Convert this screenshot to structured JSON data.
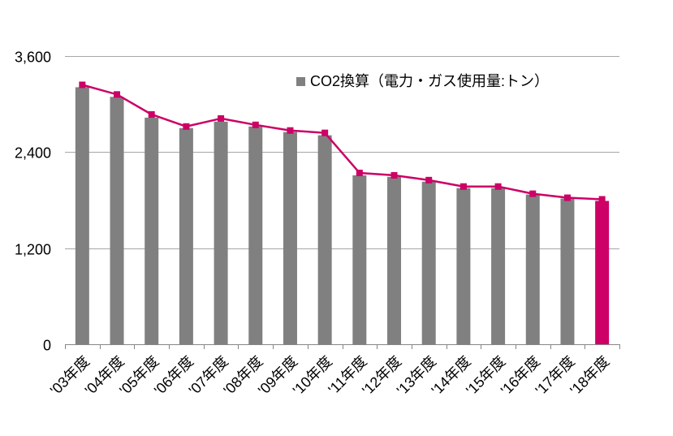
{
  "chart_data": {
    "type": "bar",
    "categories": [
      "'03年度",
      "'04年度",
      "'05年度",
      "'06年度",
      "'07年度",
      "'08年度",
      "'09年度",
      "'10年度",
      "'11年度",
      "'12年度",
      "'13年度",
      "'14年度",
      "'15年度",
      "'16年度",
      "'17年度",
      "'18年度"
    ],
    "series": [
      {
        "name": "CO2換算（電力・ガス使用量:トン）",
        "type": "bar",
        "values": [
          3210,
          3090,
          2830,
          2700,
          2780,
          2720,
          2650,
          2610,
          2110,
          2090,
          2030,
          1950,
          1950,
          1870,
          1820,
          1790
        ]
      },
      {
        "type": "line",
        "values": [
          3240,
          3120,
          2870,
          2720,
          2820,
          2740,
          2670,
          2640,
          2140,
          2110,
          2050,
          1970,
          1970,
          1880,
          1830,
          1810
        ]
      }
    ],
    "ylim": [
      0,
      3600
    ],
    "yticks": [
      "0",
      "1,200",
      "2,400",
      "3,600"
    ],
    "ytick_values": [
      0,
      1200,
      2400,
      3600
    ],
    "grid": true,
    "legend_position": "top-right",
    "colors": {
      "bar": "#808080",
      "highlight_bar": "#cc0066",
      "line": "#cc0066",
      "grid": "#a6a6a6",
      "axis": "#868686"
    },
    "highlight_index": 15
  }
}
